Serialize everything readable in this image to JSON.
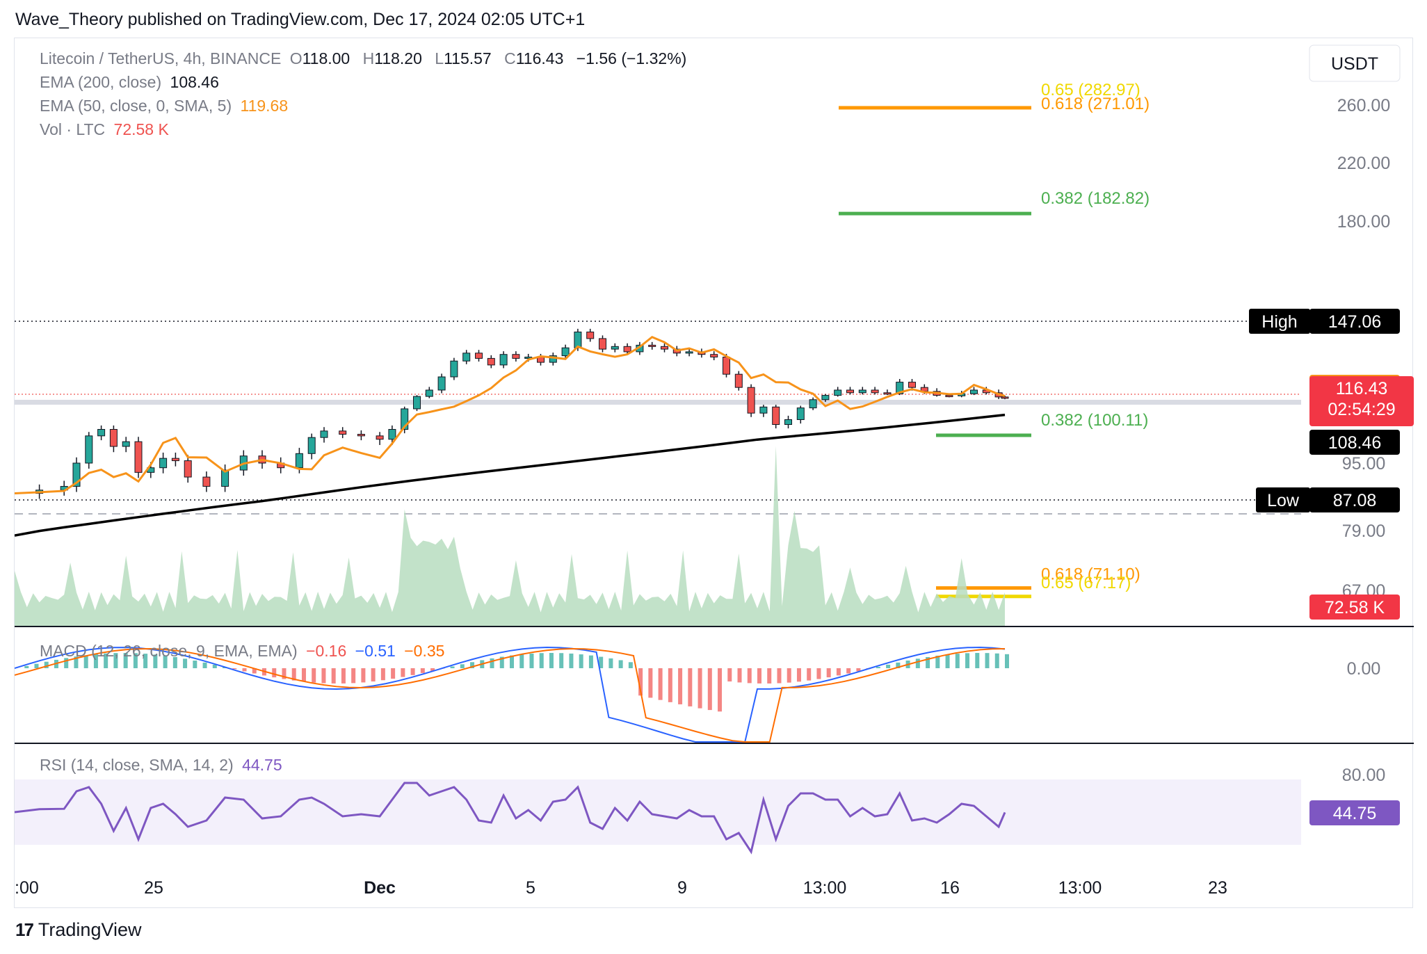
{
  "header": {
    "title": "Wave_Theory published on TradingView.com, Dec 17, 2024 02:05 UTC+1"
  },
  "symbol": {
    "name": "Litecoin / TetherUS, 4h, BINANCE",
    "open_label": "O",
    "open": "118.00",
    "high_label": "H",
    "high": "118.20",
    "low_label": "L",
    "low": "115.57",
    "close_label": "C",
    "close": "116.43",
    "change": "−1.56 (−1.32%)"
  },
  "indicators": {
    "ema200_label": "EMA (200, close)",
    "ema200_value": "108.46",
    "ema50_label": "EMA (50, close, 0, SMA, 5)",
    "ema50_value": "119.68",
    "vol_label": "Vol · LTC",
    "vol_value": "72.58 K"
  },
  "currency": "USDT",
  "macd": {
    "label": "MACD (12, 26, close, 9, EMA, EMA)",
    "hist": "−0.16",
    "macd": "−0.51",
    "signal": "−0.35"
  },
  "rsi": {
    "label": "RSI (14, close, SMA, 14, 2)",
    "value": "44.75"
  },
  "footer": {
    "brand": "TradingView",
    "logo": "17"
  },
  "colors": {
    "up": "#26a69a",
    "down": "#ef5350",
    "ema50": "#f7931a",
    "ema200": "#000000",
    "rsi": "#7e57c2",
    "fib_green": "#4caf50",
    "fib_orange": "#ff9800",
    "fib_yellow": "#ffeb3b"
  },
  "chart_data": {
    "type": "candlestick",
    "timeframe": "4h",
    "x_ticks": [
      ":00",
      "25",
      "Dec",
      "5",
      "9",
      "13:00",
      "16",
      "13:00",
      "23"
    ],
    "price_axis_ticks": [
      260,
      220,
      180,
      95,
      79,
      67
    ],
    "price_labels": [
      {
        "text": "119.68",
        "role": "ema50"
      },
      {
        "text": "116.43",
        "role": "last",
        "sub": "02:54:29"
      },
      {
        "text": "108.46",
        "role": "ema200"
      },
      {
        "text": "72.58 K",
        "role": "volume"
      }
    ],
    "high": {
      "label": "High",
      "value": "147.06"
    },
    "low": {
      "label": "Low",
      "value": "87.08"
    },
    "fib_levels": [
      {
        "ratio": "0.65",
        "price": "282.97",
        "color": "#f0d800",
        "label": "0.65 (282.97)"
      },
      {
        "ratio": "0.618",
        "price": "271.01",
        "color": "#ff9800",
        "label": "0.618 (271.01)"
      },
      {
        "ratio": "0.382",
        "price": "182.82",
        "color": "#4caf50",
        "label": "0.382 (182.82)"
      },
      {
        "ratio": "0.382",
        "price": "100.11",
        "color": "#4caf50",
        "label": "0.382 (100.11)"
      },
      {
        "ratio": "0.618",
        "price": "71.10",
        "color": "#ff9800",
        "label": "0.618 (71.10)"
      },
      {
        "ratio": "0.65",
        "price": "67.17",
        "color": "#f0d800",
        "label": "0.65 (67.17)"
      }
    ],
    "close_series": [
      {
        "t": 0,
        "c": 88.5
      },
      {
        "t": 4,
        "c": 89.2
      },
      {
        "t": 8,
        "c": 90.0
      },
      {
        "t": 10,
        "c": 95.0
      },
      {
        "t": 12,
        "c": 101.0
      },
      {
        "t": 14,
        "c": 103.0
      },
      {
        "t": 16,
        "c": 98.5
      },
      {
        "t": 18,
        "c": 99.5
      },
      {
        "t": 20,
        "c": 93.0
      },
      {
        "t": 22,
        "c": 94.0
      },
      {
        "t": 24,
        "c": 96.0
      },
      {
        "t": 26,
        "c": 95.5
      },
      {
        "t": 28,
        "c": 92.0
      },
      {
        "t": 31,
        "c": 90.0
      },
      {
        "t": 34,
        "c": 93.5
      },
      {
        "t": 37,
        "c": 96.5
      },
      {
        "t": 40,
        "c": 95.0
      },
      {
        "t": 43,
        "c": 94.0
      },
      {
        "t": 46,
        "c": 97.0
      },
      {
        "t": 48,
        "c": 100.5
      },
      {
        "t": 50,
        "c": 102.5
      },
      {
        "t": 53,
        "c": 101.5
      },
      {
        "t": 56,
        "c": 101.0
      },
      {
        "t": 59,
        "c": 100.0
      },
      {
        "t": 61,
        "c": 103.0
      },
      {
        "t": 63,
        "c": 110.0
      },
      {
        "t": 65,
        "c": 117.0
      },
      {
        "t": 67,
        "c": 121.0
      },
      {
        "t": 69,
        "c": 126.0
      },
      {
        "t": 71,
        "c": 132.0
      },
      {
        "t": 73,
        "c": 135.0
      },
      {
        "t": 75,
        "c": 133.0
      },
      {
        "t": 77,
        "c": 130.5
      },
      {
        "t": 79,
        "c": 134.5
      },
      {
        "t": 81,
        "c": 133.0
      },
      {
        "t": 83,
        "c": 133.5
      },
      {
        "t": 85,
        "c": 131.5
      },
      {
        "t": 87,
        "c": 134.0
      },
      {
        "t": 89,
        "c": 137.0
      },
      {
        "t": 91,
        "c": 143.0
      },
      {
        "t": 93,
        "c": 140.5
      },
      {
        "t": 95,
        "c": 136.5
      },
      {
        "t": 97,
        "c": 137.5
      },
      {
        "t": 99,
        "c": 135.5
      },
      {
        "t": 101,
        "c": 138.0
      },
      {
        "t": 103,
        "c": 137.5
      },
      {
        "t": 105,
        "c": 136.5
      },
      {
        "t": 107,
        "c": 135.0
      },
      {
        "t": 109,
        "c": 135.5
      },
      {
        "t": 111,
        "c": 134.5
      },
      {
        "t": 113,
        "c": 133.5
      },
      {
        "t": 115,
        "c": 127.0
      },
      {
        "t": 117,
        "c": 122.0
      },
      {
        "t": 119,
        "c": 108.0
      },
      {
        "t": 121,
        "c": 111.0
      },
      {
        "t": 123,
        "c": 104.5
      },
      {
        "t": 125,
        "c": 106.0
      },
      {
        "t": 127,
        "c": 110.5
      },
      {
        "t": 129,
        "c": 115.0
      },
      {
        "t": 131,
        "c": 118.0
      },
      {
        "t": 133,
        "c": 121.0
      },
      {
        "t": 135,
        "c": 120.0
      },
      {
        "t": 137,
        "c": 121.0
      },
      {
        "t": 139,
        "c": 120.0
      },
      {
        "t": 141,
        "c": 119.5
      },
      {
        "t": 143,
        "c": 124.0
      },
      {
        "t": 145,
        "c": 122.0
      },
      {
        "t": 147,
        "c": 120.5
      },
      {
        "t": 149,
        "c": 118.0
      },
      {
        "t": 151,
        "c": 117.5
      },
      {
        "t": 153,
        "c": 119.5
      },
      {
        "t": 155,
        "c": 121.0
      },
      {
        "t": 157,
        "c": 120.0
      },
      {
        "t": 159,
        "c": 116.5
      },
      {
        "t": 160,
        "c": 116.43
      }
    ],
    "rsi_axis_ticks": [
      80
    ],
    "macd_axis_ticks": [
      0
    ]
  }
}
